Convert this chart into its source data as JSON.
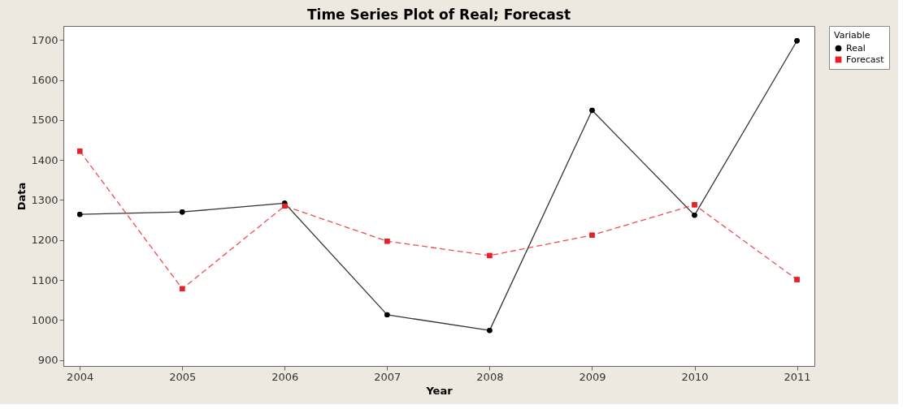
{
  "chart_data": {
    "type": "line",
    "title": "Time Series Plot of Real; Forecast",
    "xlabel": "Year",
    "ylabel": "Data",
    "legend_title": "Variable",
    "x": [
      2004,
      2005,
      2006,
      2007,
      2008,
      2009,
      2010,
      2011
    ],
    "series": [
      {
        "name": "Real",
        "color": "#000000",
        "values": [
          1264,
          1270,
          1292,
          1013,
          974,
          1524,
          1262,
          1698
        ],
        "marker": "circle",
        "line_style": "solid"
      },
      {
        "name": "Forecast",
        "color": "#e8202a",
        "values": [
          1422,
          1078,
          1285,
          1197,
          1161,
          1212,
          1288,
          1101
        ],
        "marker": "square",
        "line_style": "dashed"
      }
    ],
    "xlim": [
      2003.84,
      2011.17
    ],
    "xticks": [
      2004,
      2005,
      2006,
      2007,
      2008,
      2009,
      2010,
      2011
    ],
    "ylim": [
      885,
      1735
    ],
    "yticks": [
      900,
      1000,
      1100,
      1200,
      1300,
      1400,
      1500,
      1600,
      1700
    ],
    "grid": false,
    "legend": "top right"
  }
}
